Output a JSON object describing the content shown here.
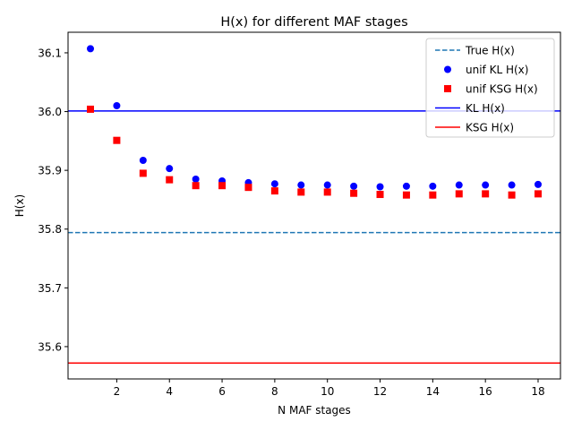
{
  "chart_data": {
    "type": "scatter",
    "title": "H(x) for different MAF stages",
    "xlabel": "N MAF stages",
    "ylabel": "H(x)",
    "xlim": [
      0.15,
      18.85
    ],
    "ylim": [
      35.545,
      36.135
    ],
    "xticks": [
      2,
      4,
      6,
      8,
      10,
      12,
      14,
      16,
      18
    ],
    "yticks": [
      35.6,
      35.7,
      35.8,
      35.9,
      36.0,
      36.1
    ],
    "ytick_labels": [
      "35.6",
      "35.7",
      "35.8",
      "35.9",
      "36.0",
      "36.1"
    ],
    "grid": false,
    "legend_position": "top-right",
    "x": [
      1,
      2,
      3,
      4,
      5,
      6,
      7,
      8,
      9,
      10,
      11,
      12,
      13,
      14,
      15,
      16,
      17,
      18
    ],
    "series": [
      {
        "name": "unif KL H(x)",
        "kind": "points",
        "marker": "circle",
        "color": "#0000ff",
        "values": [
          36.107,
          36.01,
          35.917,
          35.903,
          35.885,
          35.882,
          35.879,
          35.877,
          35.875,
          35.875,
          35.873,
          35.872,
          35.873,
          35.873,
          35.875,
          35.875,
          35.875,
          35.876
        ]
      },
      {
        "name": "unif KSG H(x)",
        "kind": "points",
        "marker": "square",
        "color": "#ff0000",
        "values": [
          36.004,
          35.951,
          35.895,
          35.884,
          35.874,
          35.874,
          35.871,
          35.865,
          35.863,
          35.863,
          35.861,
          35.859,
          35.858,
          35.858,
          35.86,
          35.86,
          35.858,
          35.86
        ]
      }
    ],
    "reference_lines": [
      {
        "name": "True H(x)",
        "y": 35.794,
        "style": "dashed",
        "color": "#1f77b4"
      },
      {
        "name": "KL H(x)",
        "y": 36.001,
        "style": "solid",
        "color": "#0000ff"
      },
      {
        "name": "KSG H(x)",
        "y": 35.572,
        "style": "solid",
        "color": "#ff0000"
      }
    ],
    "legend": [
      {
        "label": "True H(x)",
        "type": "dashed-line",
        "color": "#1f77b4"
      },
      {
        "label": "unif KL H(x)",
        "type": "circle",
        "color": "#0000ff"
      },
      {
        "label": "unif KSG H(x)",
        "type": "square",
        "color": "#ff0000"
      },
      {
        "label": "KL H(x)",
        "type": "solid-line",
        "color": "#0000ff"
      },
      {
        "label": "KSG H(x)",
        "type": "solid-line",
        "color": "#ff0000"
      }
    ]
  }
}
